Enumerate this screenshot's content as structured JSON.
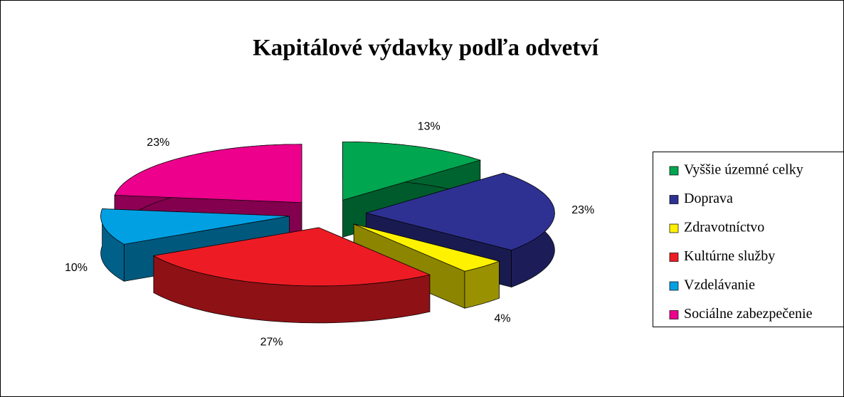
{
  "chart_data": {
    "type": "pie3d",
    "title": "Kapitálové výdavky podľa odvetví",
    "categories": [
      "Vyššie územné celky",
      "Doprava",
      "Zdravotníctvo",
      "Kultúrne služby",
      "Vzdelávanie",
      "Sociálne zabezpečenie"
    ],
    "values": [
      13,
      23,
      4,
      27,
      10,
      23
    ],
    "value_labels": [
      "13%",
      "23%",
      "4%",
      "27%",
      "10%",
      "23%"
    ],
    "colors": [
      "#00a650",
      "#2e3192",
      "#fff200",
      "#ed1c24",
      "#00a0e3",
      "#ec008c"
    ],
    "legend": "right"
  }
}
